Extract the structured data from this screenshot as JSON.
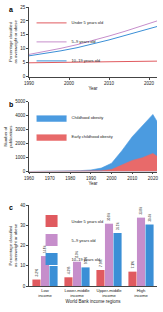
{
  "chart_data": [
    {
      "type": "line",
      "panel": "a",
      "x": [
        1990,
        1994,
        1998,
        2002,
        2006,
        2010,
        2014,
        2018,
        2022
      ],
      "series": [
        {
          "name": "Under 5 years old",
          "color": "#e05a5f",
          "values": [
            5.0,
            5.1,
            5.2,
            5.3,
            5.4,
            5.5,
            5.5,
            5.6,
            5.6
          ]
        },
        {
          "name": "5–9 years old",
          "color": "#c68ecb",
          "values": [
            8.0,
            9.0,
            10.2,
            11.5,
            13.0,
            14.6,
            16.3,
            18.2,
            20.0
          ]
        },
        {
          "name": "10–19 years old",
          "color": "#3b8fd6",
          "values": [
            7.5,
            8.3,
            9.3,
            10.4,
            11.7,
            13.2,
            14.8,
            16.5,
            18.0
          ]
        }
      ],
      "xlim": [
        1990,
        2022
      ],
      "xticks": [
        1990,
        2000,
        2010,
        2020
      ],
      "ylim": [
        0,
        25
      ],
      "yticks": [
        0,
        5,
        10,
        15,
        20,
        25
      ],
      "xlabel": "Year",
      "ylabel": "Percentage classified as overweight or obese",
      "grid": false,
      "legend": "upper left"
    },
    {
      "type": "area",
      "panel": "b",
      "x": [
        1960,
        1965,
        1970,
        1975,
        1980,
        1985,
        1990,
        1995,
        2000,
        2005,
        2010,
        2015,
        2020,
        2022
      ],
      "series": [
        {
          "name": "Childhood obesity",
          "color": "#4b9be0",
          "values": [
            10,
            15,
            20,
            30,
            50,
            70,
            120,
            250,
            600,
            1500,
            2500,
            3300,
            4100,
            3600
          ]
        },
        {
          "name": "Early childhood obesity",
          "color": "#e86a6a",
          "values": [
            2,
            3,
            5,
            8,
            12,
            18,
            30,
            60,
            150,
            450,
            800,
            1000,
            1300,
            1100
          ]
        }
      ],
      "xlim": [
        1960,
        2022
      ],
      "xticks": [
        1960,
        1970,
        1980,
        1990,
        2000,
        2010,
        2020
      ],
      "ylim": [
        0,
        5000
      ],
      "yticks": [
        0,
        1000,
        2000,
        3000,
        4000,
        5000
      ],
      "xlabel": "Year",
      "ylabel": "Number of publications",
      "grid": false,
      "legend": "upper left"
    },
    {
      "type": "bar",
      "panel": "c",
      "categories": [
        "Low income",
        "Lower-middle income",
        "Upper-middle income",
        "High income"
      ],
      "series": [
        {
          "name": "Under 5 years old",
          "color": "#e05a5f",
          "values": [
            3.2,
            4.3,
            7.9,
            7.1
          ],
          "value_labels": [
            "3.2%",
            "4.3%",
            "7.9%",
            "7.1%"
          ]
        },
        {
          "name": "5–9 years old",
          "color": "#c68ecb",
          "values": [
            14.8,
            12.0,
            30.8,
            33.8
          ],
          "value_labels": [
            "14.8%",
            "12.0%",
            "30.8%",
            "33.8%"
          ]
        },
        {
          "name": "10–19 years old",
          "color": "#3b8fd6",
          "values": [
            9.9,
            9.2,
            26.2,
            30.4
          ],
          "value_labels": [
            "9.9%",
            "9.2%",
            "26.2%",
            "30.4%"
          ]
        }
      ],
      "ylim": [
        0,
        40
      ],
      "yticks": [
        0,
        10,
        20,
        30,
        40
      ],
      "xlabel": "World Bank income regions",
      "ylabel": "Percentage classified as overweight or obese",
      "grid": false,
      "legend": "upper left",
      "data_labels": true
    }
  ]
}
